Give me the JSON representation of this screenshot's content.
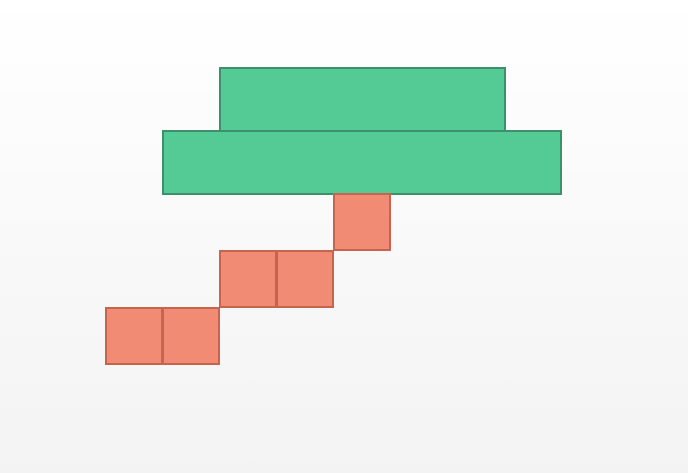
{
  "colors": {
    "background_top": "#ffffff",
    "background_bottom": "#f3f3f3",
    "platform_fill": "#54ca94",
    "platform_border": "#3e8f6c",
    "tile_fill": "#f28b74",
    "tile_border": "#c5644f"
  },
  "scene": {
    "platforms": [
      {
        "name": "platform-top"
      },
      {
        "name": "platform-bottom"
      }
    ],
    "tiles": [
      {
        "name": "tile-1"
      },
      {
        "name": "tile-2"
      },
      {
        "name": "tile-3"
      },
      {
        "name": "tile-4"
      },
      {
        "name": "tile-5"
      }
    ]
  }
}
